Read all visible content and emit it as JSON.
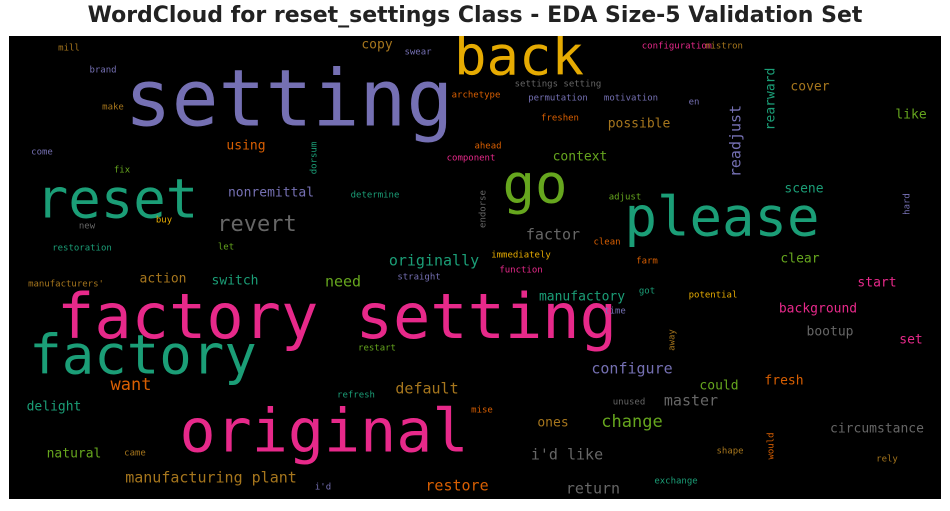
{
  "title": "WordCloud for reset_settings Class - EDA Size-5 Validation Set",
  "chart_data": {
    "type": "wordcloud",
    "background": "#000000",
    "colormap": "Dark2",
    "words": [
      {
        "text": "setting",
        "size": 9,
        "color": "#7570b3"
      },
      {
        "text": "factory setting",
        "size": 8,
        "color": "#e7298a"
      },
      {
        "text": "back",
        "size": 6,
        "color": "#e6ab02"
      },
      {
        "text": "reset",
        "size": 6,
        "color": "#1b9e77"
      },
      {
        "text": "original",
        "size": 7,
        "color": "#e7298a"
      },
      {
        "text": "please",
        "size": 6,
        "color": "#1b9e77"
      },
      {
        "text": "go",
        "size": 6,
        "color": "#66a61e"
      },
      {
        "text": "factory",
        "size": 6,
        "color": "#1b9e77"
      },
      {
        "text": "revert",
        "size": 4,
        "color": "#666666"
      },
      {
        "text": "want",
        "size": 3,
        "color": "#d95f02"
      },
      {
        "text": "change",
        "size": 3,
        "color": "#66a61e"
      },
      {
        "text": "readjust",
        "size": 2,
        "color": "#7570b3"
      },
      {
        "text": "factor",
        "size": 2,
        "color": "#666666"
      },
      {
        "text": "originally",
        "size": 2,
        "color": "#1b9e77"
      },
      {
        "text": "restore",
        "size": 2,
        "color": "#d95f02"
      },
      {
        "text": "i'd like",
        "size": 2,
        "color": "#666666"
      },
      {
        "text": "manufacturing plant",
        "size": 2,
        "color": "#a6761d"
      },
      {
        "text": "return",
        "size": 2,
        "color": "#666666"
      },
      {
        "text": "need",
        "size": 2,
        "color": "#66a61e"
      },
      {
        "text": "default",
        "size": 2,
        "color": "#a6761d"
      },
      {
        "text": "configure",
        "size": 2,
        "color": "#7570b3"
      },
      {
        "text": "master",
        "size": 2,
        "color": "#666666"
      },
      {
        "text": "possible",
        "size": 1,
        "color": "#a6761d"
      },
      {
        "text": "start",
        "size": 1,
        "color": "#e7298a"
      },
      {
        "text": "switch",
        "size": 1,
        "color": "#1b9e77"
      },
      {
        "text": "nonremittal",
        "size": 1,
        "color": "#7570b3"
      },
      {
        "text": "copy",
        "size": 1,
        "color": "#a6761d"
      },
      {
        "text": "cover",
        "size": 1,
        "color": "#a6761d"
      },
      {
        "text": "like",
        "size": 1,
        "color": "#66a61e"
      },
      {
        "text": "rearward",
        "size": 1,
        "color": "#1b9e77"
      },
      {
        "text": "context",
        "size": 1,
        "color": "#66a61e"
      },
      {
        "text": "using",
        "size": 1,
        "color": "#d95f02"
      },
      {
        "text": "scene",
        "size": 1,
        "color": "#1b9e77"
      },
      {
        "text": "clear",
        "size": 1,
        "color": "#66a61e"
      },
      {
        "text": "action",
        "size": 1,
        "color": "#a6761d"
      },
      {
        "text": "manufactory",
        "size": 1,
        "color": "#1b9e77"
      },
      {
        "text": "background",
        "size": 1,
        "color": "#e7298a"
      },
      {
        "text": "bootup",
        "size": 1,
        "color": "#666666"
      },
      {
        "text": "set",
        "size": 1,
        "color": "#e7298a"
      },
      {
        "text": "could",
        "size": 1,
        "color": "#66a61e"
      },
      {
        "text": "fresh",
        "size": 1,
        "color": "#d95f02"
      },
      {
        "text": "delight",
        "size": 1,
        "color": "#1b9e77"
      },
      {
        "text": "ones",
        "size": 1,
        "color": "#a6761d"
      },
      {
        "text": "circumstance",
        "size": 1,
        "color": "#666666"
      },
      {
        "text": "natural",
        "size": 1,
        "color": "#66a61e"
      },
      {
        "text": "mill",
        "size": 0,
        "color": "#a6761d"
      },
      {
        "text": "brand",
        "size": 0,
        "color": "#7570b3"
      },
      {
        "text": "swear",
        "size": 0,
        "color": "#7570b3"
      },
      {
        "text": "configuration",
        "size": 0,
        "color": "#e7298a"
      },
      {
        "text": "nistron",
        "size": 0,
        "color": "#a6761d"
      },
      {
        "text": "settings setting",
        "size": 0,
        "color": "#666666"
      },
      {
        "text": "archetype",
        "size": 0,
        "color": "#d95f02"
      },
      {
        "text": "permutation",
        "size": 0,
        "color": "#7570b3"
      },
      {
        "text": "motivation",
        "size": 0,
        "color": "#7570b3"
      },
      {
        "text": "en",
        "size": 0,
        "color": "#7570b3"
      },
      {
        "text": "make",
        "size": 0,
        "color": "#a6761d"
      },
      {
        "text": "freshen",
        "size": 0,
        "color": "#d95f02"
      },
      {
        "text": "ahead",
        "size": 0,
        "color": "#d95f02"
      },
      {
        "text": "component",
        "size": 0,
        "color": "#e7298a"
      },
      {
        "text": "come",
        "size": 0,
        "color": "#7570b3"
      },
      {
        "text": "fix",
        "size": 0,
        "color": "#66a61e"
      },
      {
        "text": "dorsum",
        "size": 0,
        "color": "#1b9e77"
      },
      {
        "text": "determine",
        "size": 0,
        "color": "#1b9e77"
      },
      {
        "text": "adjust",
        "size": 0,
        "color": "#66a61e"
      },
      {
        "text": "hard",
        "size": 0,
        "color": "#7570b3"
      },
      {
        "text": "new",
        "size": 0,
        "color": "#666666"
      },
      {
        "text": "buy",
        "size": 0,
        "color": "#e6ab02"
      },
      {
        "text": "endorse",
        "size": 0,
        "color": "#666666"
      },
      {
        "text": "clean",
        "size": 0,
        "color": "#d95f02"
      },
      {
        "text": "restoration",
        "size": 0,
        "color": "#1b9e77"
      },
      {
        "text": "let",
        "size": 0,
        "color": "#66a61e"
      },
      {
        "text": "immediately",
        "size": 0,
        "color": "#e6ab02"
      },
      {
        "text": "farm",
        "size": 0,
        "color": "#d95f02"
      },
      {
        "text": "function",
        "size": 0,
        "color": "#e7298a"
      },
      {
        "text": "manufacturers'",
        "size": 0,
        "color": "#a6761d"
      },
      {
        "text": "straight",
        "size": 0,
        "color": "#7570b3"
      },
      {
        "text": "got",
        "size": 0,
        "color": "#1b9e77"
      },
      {
        "text": "potential",
        "size": 0,
        "color": "#e6ab02"
      },
      {
        "text": "time",
        "size": 0,
        "color": "#7570b3"
      },
      {
        "text": "away",
        "size": 0,
        "color": "#a6761d"
      },
      {
        "text": "restart",
        "size": 0,
        "color": "#66a61e"
      },
      {
        "text": "refresh",
        "size": 0,
        "color": "#1b9e77"
      },
      {
        "text": "unused",
        "size": 0,
        "color": "#666666"
      },
      {
        "text": "mise",
        "size": 0,
        "color": "#d95f02"
      },
      {
        "text": "came",
        "size": 0,
        "color": "#a6761d"
      },
      {
        "text": "shape",
        "size": 0,
        "color": "#a6761d"
      },
      {
        "text": "would",
        "size": 0,
        "color": "#d95f02"
      },
      {
        "text": "rely",
        "size": 0,
        "color": "#a6761d"
      },
      {
        "text": "exchange",
        "size": 0,
        "color": "#1b9e77"
      },
      {
        "text": "i'd",
        "size": 0,
        "color": "#7570b3"
      }
    ]
  }
}
